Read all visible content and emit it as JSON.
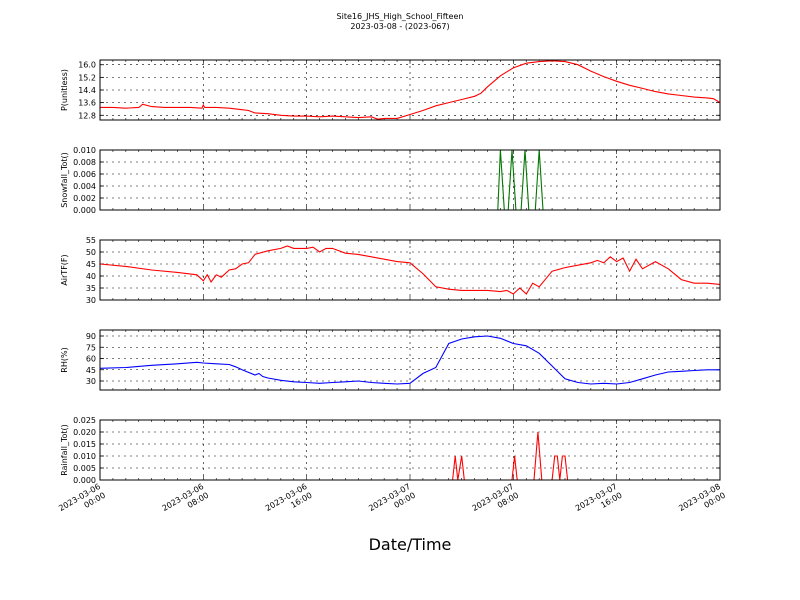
{
  "title": "Site16_JHS_High_School_Fifteen",
  "subtitle": "2023-03-08 - (2023-067)",
  "xlabel": "Date/Time",
  "x_ticks": [
    "2023-03-06\n00:00",
    "2023-03-06\n08:00",
    "2023-03-06\n16:00",
    "2023-03-07\n00:00",
    "2023-03-07\n08:00",
    "2023-03-07\n16:00",
    "2023-03-08\n00:00"
  ],
  "chart_data": [
    {
      "type": "line",
      "ylabel": "P(unitless)",
      "color": "#ff0000",
      "ylim": [
        12.5,
        16.3
      ],
      "yticks": [
        12.8,
        13.6,
        14.4,
        15.2,
        16.0
      ],
      "ytick_labels": [
        "12.8",
        "13.6",
        "14.4",
        "15.2",
        "16.0"
      ],
      "grid": true,
      "x": [
        0,
        1,
        2,
        3,
        3.1,
        3.3,
        4,
        5,
        6,
        7,
        7.9,
        8,
        8.1,
        9,
        10,
        11,
        11.5,
        12,
        13,
        14,
        15,
        16,
        17,
        18,
        19,
        20,
        21,
        21.5,
        22,
        23,
        24,
        25,
        26,
        27,
        28,
        29,
        29.5,
        30,
        31,
        32,
        33,
        34,
        35,
        36,
        37,
        38,
        39,
        40,
        41,
        42,
        43,
        44,
        45,
        46,
        47,
        47.5,
        48
      ],
      "y": [
        13.3,
        13.3,
        13.25,
        13.3,
        13.35,
        13.5,
        13.35,
        13.3,
        13.3,
        13.3,
        13.25,
        13.45,
        13.3,
        13.3,
        13.25,
        13.15,
        13.1,
        12.95,
        12.9,
        12.8,
        12.75,
        12.75,
        12.7,
        12.75,
        12.7,
        12.65,
        12.7,
        12.55,
        12.6,
        12.6,
        12.85,
        13.1,
        13.4,
        13.6,
        13.8,
        14.0,
        14.2,
        14.6,
        15.3,
        15.8,
        16.1,
        16.2,
        16.25,
        16.2,
        16.0,
        15.6,
        15.25,
        14.95,
        14.7,
        14.5,
        14.3,
        14.15,
        14.05,
        13.95,
        13.9,
        13.85,
        13.6
      ]
    },
    {
      "type": "line",
      "ylabel": "Snowfall_Tot()",
      "color": "#007700",
      "ylim": [
        0,
        0.01
      ],
      "yticks": [
        0,
        0.002,
        0.004,
        0.006,
        0.008,
        0.01
      ],
      "ytick_labels": [
        "0.000",
        "0.002",
        "0.004",
        "0.006",
        "0.008",
        "0.010"
      ],
      "grid": true,
      "x": [
        0,
        30.8,
        31.0,
        31.3,
        31.6,
        31.9,
        32.2,
        32.4,
        32.6,
        32.9,
        33.2,
        33.5,
        33.7,
        34.0,
        34.3,
        34.6,
        48
      ],
      "y": [
        0,
        0,
        0.01,
        0,
        0,
        0.01,
        0,
        0,
        0,
        0.01,
        0,
        0,
        0,
        0.01,
        0,
        0,
        0
      ]
    },
    {
      "type": "line",
      "ylabel": "AirTF(F)",
      "color": "#ff0000",
      "ylim": [
        30,
        55
      ],
      "yticks": [
        30,
        35,
        40,
        45,
        50,
        55
      ],
      "ytick_labels": [
        "30",
        "35",
        "40",
        "45",
        "50",
        "55"
      ],
      "grid": true,
      "x": [
        0,
        2,
        4,
        6,
        7.5,
        8,
        8.3,
        8.6,
        9,
        9.4,
        10,
        10.5,
        11,
        11.5,
        12,
        13,
        14,
        14.5,
        15,
        16,
        16.5,
        17,
        17.5,
        18,
        19,
        20,
        21,
        22,
        23,
        24,
        25,
        26,
        27,
        28,
        29,
        30,
        31,
        31.5,
        32,
        32.5,
        33,
        33.5,
        34,
        35,
        36,
        37,
        38,
        38.5,
        39,
        39.5,
        40,
        40.5,
        41,
        41.5,
        42,
        43,
        44,
        45,
        46,
        47,
        48
      ],
      "y": [
        45,
        44,
        42.5,
        41.5,
        40.5,
        38,
        40.5,
        37.5,
        40.5,
        39.5,
        42.5,
        43,
        45,
        45.5,
        49,
        50.5,
        51.5,
        52.5,
        51.5,
        51.5,
        52,
        50,
        51.5,
        51.5,
        49.5,
        49,
        48,
        47,
        46,
        45.5,
        41,
        35.5,
        34.5,
        34,
        34,
        34,
        33.5,
        34,
        32.5,
        35,
        32.5,
        37,
        35.5,
        42,
        43.5,
        44.5,
        45.5,
        46.5,
        45.5,
        48,
        46,
        47.5,
        42,
        47,
        43,
        46,
        43,
        38.5,
        37,
        37,
        36.5
      ]
    },
    {
      "type": "line",
      "ylabel": "RH(%)",
      "color": "#0000ff",
      "ylim": [
        18,
        98
      ],
      "yticks": [
        30,
        45,
        60,
        75,
        90
      ],
      "ytick_labels": [
        "30",
        "45",
        "60",
        "75",
        "90"
      ],
      "grid": true,
      "x": [
        0,
        2,
        4,
        6,
        7.5,
        8,
        9,
        10,
        10.5,
        11,
        12,
        12.3,
        12.6,
        13,
        14,
        15,
        16,
        17,
        18,
        19,
        20,
        21,
        22,
        23,
        24,
        25,
        26,
        27,
        28,
        29,
        30,
        31,
        32,
        33,
        34,
        35,
        36,
        37,
        38,
        39,
        40,
        41,
        42,
        43,
        44,
        45,
        46,
        47,
        48
      ],
      "y": [
        47,
        48,
        51,
        53,
        55,
        54,
        53,
        52,
        49,
        45,
        38,
        40,
        36,
        34,
        31,
        29,
        28,
        27,
        28,
        29,
        30,
        28,
        27,
        26,
        27,
        40,
        48,
        80,
        86,
        89,
        90,
        87,
        80,
        77,
        67,
        50,
        33,
        28,
        26,
        27,
        26,
        28,
        33,
        38,
        42,
        43,
        44,
        45,
        45
      ]
    },
    {
      "type": "line",
      "ylabel": "Rainfall_Tot()",
      "color": "#ff0000",
      "ylim": [
        0,
        0.025
      ],
      "yticks": [
        0,
        0.005,
        0.01,
        0.015,
        0.02,
        0.025
      ],
      "ytick_labels": [
        "0.000",
        "0.005",
        "0.010",
        "0.015",
        "0.020",
        "0.025"
      ],
      "grid": true,
      "x": [
        0,
        27.3,
        27.5,
        27.7,
        28.0,
        28.2,
        28.5,
        31.9,
        32.1,
        32.3,
        33.6,
        33.9,
        34.2,
        35.0,
        35.2,
        35.4,
        35.6,
        35.8,
        36.0,
        36.2,
        36.4,
        48
      ],
      "y": [
        0,
        0,
        0.01,
        0,
        0.01,
        0,
        0,
        0,
        0.01,
        0,
        0,
        0.02,
        0,
        0,
        0.01,
        0.01,
        0,
        0.01,
        0.01,
        0,
        0,
        0
      ]
    }
  ]
}
